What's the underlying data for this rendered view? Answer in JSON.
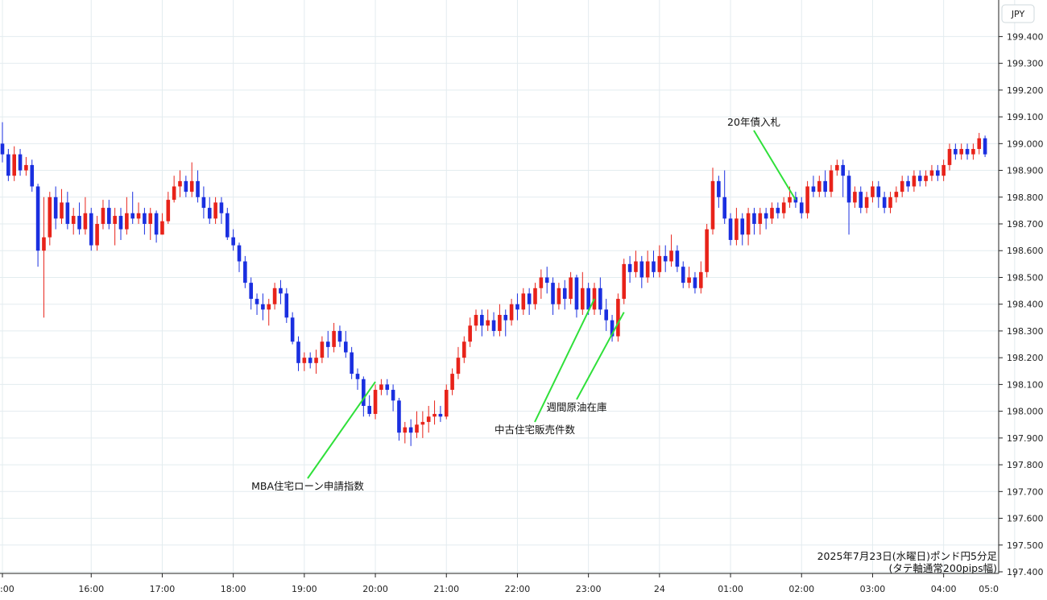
{
  "chart_data": {
    "type": "candlestick",
    "currency_label": "JPY",
    "title_line1": "2025年7月23日(水曜日)ポンド円5分足",
    "title_line2": "(タテ軸通常200pips幅)",
    "ylim": [
      197.4,
      199.45
    ],
    "y_ticks": [
      "197.400",
      "197.500",
      "197.600",
      "197.700",
      "197.800",
      "197.900",
      "198.000",
      "198.100",
      "198.200",
      "198.300",
      "198.400",
      "198.500",
      "198.600",
      "198.700",
      "198.800",
      "198.900",
      "199.000",
      "199.100",
      "199.200",
      "199.300",
      "199.400"
    ],
    "x_ticks": [
      {
        "label": ":00",
        "i": 0
      },
      {
        "label": "16:00",
        "i": 15
      },
      {
        "label": "17:00",
        "i": 27
      },
      {
        "label": "18:00",
        "i": 39
      },
      {
        "label": "19:00",
        "i": 51
      },
      {
        "label": "20:00",
        "i": 63
      },
      {
        "label": "21:00",
        "i": 75
      },
      {
        "label": "22:00",
        "i": 87
      },
      {
        "label": "23:00",
        "i": 99
      },
      {
        "label": "24",
        "i": 111
      },
      {
        "label": "01:00",
        "i": 123
      },
      {
        "label": "02:00",
        "i": 135
      },
      {
        "label": "03:00",
        "i": 147
      },
      {
        "label": "04:00",
        "i": 159
      },
      {
        "label": "05:0",
        "i": 171
      }
    ],
    "candles": [
      [
        199.0,
        198.96,
        199.08,
        198.93
      ],
      [
        198.96,
        198.88,
        198.98,
        198.86
      ],
      [
        198.88,
        198.96,
        198.99,
        198.86
      ],
      [
        198.96,
        198.9,
        198.98,
        198.88
      ],
      [
        198.9,
        198.92,
        198.95,
        198.88
      ],
      [
        198.92,
        198.84,
        198.94,
        198.82
      ],
      [
        198.84,
        198.6,
        198.85,
        198.54
      ],
      [
        198.6,
        198.65,
        198.8,
        198.35
      ],
      [
        198.65,
        198.8,
        198.82,
        198.62
      ],
      [
        198.8,
        198.72,
        198.84,
        198.68
      ],
      [
        198.72,
        198.78,
        198.83,
        198.7
      ],
      [
        198.78,
        198.7,
        198.82,
        198.68
      ],
      [
        198.7,
        198.73,
        198.76,
        198.66
      ],
      [
        198.73,
        198.68,
        198.78,
        198.66
      ],
      [
        198.68,
        198.74,
        198.8,
        198.66
      ],
      [
        198.74,
        198.62,
        198.76,
        198.6
      ],
      [
        198.62,
        198.7,
        198.73,
        198.6
      ],
      [
        198.7,
        198.76,
        198.79,
        198.68
      ],
      [
        198.76,
        198.7,
        198.79,
        198.68
      ],
      [
        198.7,
        198.73,
        198.76,
        198.62
      ],
      [
        198.73,
        198.68,
        198.76,
        198.64
      ],
      [
        198.68,
        198.74,
        198.8,
        198.66
      ],
      [
        198.74,
        198.72,
        198.82,
        198.7
      ],
      [
        198.72,
        198.74,
        198.78,
        198.7
      ],
      [
        198.74,
        198.7,
        198.76,
        198.66
      ],
      [
        198.7,
        198.74,
        198.76,
        198.64
      ],
      [
        198.74,
        198.66,
        198.75,
        198.63
      ],
      [
        198.66,
        198.71,
        198.74,
        198.66
      ],
      [
        198.71,
        198.79,
        198.82,
        198.7
      ],
      [
        198.79,
        198.84,
        198.88,
        198.78
      ],
      [
        198.84,
        198.86,
        198.9,
        198.8
      ],
      [
        198.86,
        198.82,
        198.88,
        198.8
      ],
      [
        198.82,
        198.86,
        198.93,
        198.8
      ],
      [
        198.86,
        198.8,
        198.9,
        198.78
      ],
      [
        198.8,
        198.76,
        198.84,
        198.72
      ],
      [
        198.76,
        198.72,
        198.8,
        198.7
      ],
      [
        198.72,
        198.78,
        198.8,
        198.7
      ],
      [
        198.78,
        198.74,
        198.8,
        198.7
      ],
      [
        198.74,
        198.65,
        198.76,
        198.64
      ],
      [
        198.65,
        198.62,
        198.68,
        198.6
      ],
      [
        198.62,
        198.56,
        198.63,
        198.52
      ],
      [
        198.56,
        198.48,
        198.58,
        198.46
      ],
      [
        198.48,
        198.42,
        198.5,
        198.38
      ],
      [
        198.42,
        198.4,
        198.44,
        198.36
      ],
      [
        198.4,
        198.38,
        198.44,
        198.34
      ],
      [
        198.38,
        198.4,
        198.42,
        198.32
      ],
      [
        198.4,
        198.46,
        198.48,
        198.38
      ],
      [
        198.46,
        198.44,
        198.49,
        198.4
      ],
      [
        198.44,
        198.35,
        198.46,
        198.33
      ],
      [
        198.35,
        198.26,
        198.37,
        198.25
      ],
      [
        198.26,
        198.18,
        198.28,
        198.15
      ],
      [
        198.18,
        198.2,
        198.22,
        198.15
      ],
      [
        198.2,
        198.18,
        198.22,
        198.16
      ],
      [
        198.18,
        198.2,
        198.23,
        198.14
      ],
      [
        198.2,
        198.26,
        198.28,
        198.18
      ],
      [
        198.26,
        198.24,
        198.3,
        198.2
      ],
      [
        198.24,
        198.3,
        198.33,
        198.22
      ],
      [
        198.3,
        198.26,
        198.32,
        198.24
      ],
      [
        198.26,
        198.22,
        198.3,
        198.2
      ],
      [
        198.22,
        198.14,
        198.24,
        198.12
      ],
      [
        198.14,
        198.12,
        198.16,
        198.08
      ],
      [
        198.12,
        198.02,
        198.13,
        197.98
      ],
      [
        198.02,
        197.99,
        198.06,
        197.98
      ],
      [
        197.99,
        198.08,
        198.1,
        197.97
      ],
      [
        198.08,
        198.1,
        198.12,
        198.06
      ],
      [
        198.1,
        198.08,
        198.12,
        198.06
      ],
      [
        198.08,
        198.04,
        198.1,
        198.0
      ],
      [
        198.04,
        197.92,
        198.05,
        197.89
      ],
      [
        197.92,
        197.94,
        197.96,
        197.88
      ],
      [
        197.94,
        197.92,
        197.97,
        197.87
      ],
      [
        197.92,
        197.95,
        198.0,
        197.9
      ],
      [
        197.95,
        197.96,
        198.0,
        197.9
      ],
      [
        197.96,
        197.98,
        198.02,
        197.92
      ],
      [
        197.98,
        197.99,
        198.04,
        197.95
      ],
      [
        197.99,
        197.98,
        198.02,
        197.96
      ],
      [
        197.98,
        198.08,
        198.1,
        197.97
      ],
      [
        198.08,
        198.14,
        198.16,
        198.06
      ],
      [
        198.14,
        198.2,
        198.24,
        198.12
      ],
      [
        198.2,
        198.26,
        198.28,
        198.18
      ],
      [
        198.26,
        198.32,
        198.35,
        198.24
      ],
      [
        198.32,
        198.36,
        198.38,
        198.3
      ],
      [
        198.36,
        198.32,
        198.38,
        198.28
      ],
      [
        198.32,
        198.34,
        198.38,
        198.3
      ],
      [
        198.34,
        198.3,
        198.37,
        198.28
      ],
      [
        198.3,
        198.36,
        198.4,
        198.28
      ],
      [
        198.36,
        198.34,
        198.38,
        198.28
      ],
      [
        198.34,
        198.4,
        198.42,
        198.32
      ],
      [
        198.4,
        198.38,
        198.44,
        198.34
      ],
      [
        198.38,
        198.44,
        198.46,
        198.36
      ],
      [
        198.44,
        198.4,
        198.46,
        198.36
      ],
      [
        198.4,
        198.46,
        198.48,
        198.38
      ],
      [
        198.46,
        198.5,
        198.53,
        198.42
      ],
      [
        198.5,
        198.48,
        198.54,
        198.44
      ],
      [
        198.48,
        198.4,
        198.5,
        198.36
      ],
      [
        198.4,
        198.46,
        198.48,
        198.38
      ],
      [
        198.46,
        198.42,
        198.49,
        198.38
      ],
      [
        198.42,
        198.5,
        198.52,
        198.4
      ],
      [
        198.5,
        198.38,
        198.51,
        198.35
      ],
      [
        198.38,
        198.46,
        198.52,
        198.36
      ],
      [
        198.46,
        198.38,
        198.48,
        198.36
      ],
      [
        198.38,
        198.46,
        198.48,
        198.36
      ],
      [
        198.46,
        198.38,
        198.5,
        198.36
      ],
      [
        198.38,
        198.34,
        198.42,
        198.3
      ],
      [
        198.34,
        198.28,
        198.36,
        198.26
      ],
      [
        198.28,
        198.42,
        198.44,
        198.26
      ],
      [
        198.42,
        198.55,
        198.57,
        198.4
      ],
      [
        198.55,
        198.52,
        198.58,
        198.48
      ],
      [
        198.52,
        198.56,
        198.6,
        198.5
      ],
      [
        198.56,
        198.5,
        198.58,
        198.46
      ],
      [
        198.5,
        198.56,
        198.6,
        198.48
      ],
      [
        198.56,
        198.52,
        198.6,
        198.5
      ],
      [
        198.52,
        198.58,
        198.62,
        198.5
      ],
      [
        198.58,
        198.56,
        198.62,
        198.52
      ],
      [
        198.56,
        198.6,
        198.66,
        198.54
      ],
      [
        198.6,
        198.54,
        198.62,
        198.52
      ],
      [
        198.54,
        198.48,
        198.56,
        198.46
      ],
      [
        198.48,
        198.5,
        198.54,
        198.46
      ],
      [
        198.5,
        198.46,
        198.52,
        198.44
      ],
      [
        198.46,
        198.52,
        198.56,
        198.44
      ],
      [
        198.52,
        198.68,
        198.7,
        198.5
      ],
      [
        198.68,
        198.86,
        198.91,
        198.66
      ],
      [
        198.86,
        198.8,
        198.88,
        198.76
      ],
      [
        198.8,
        198.72,
        198.9,
        198.7
      ],
      [
        198.72,
        198.64,
        198.74,
        198.62
      ],
      [
        198.64,
        198.72,
        198.76,
        198.62
      ],
      [
        198.72,
        198.66,
        198.74,
        198.62
      ],
      [
        198.66,
        198.74,
        198.76,
        198.62
      ],
      [
        198.74,
        198.7,
        198.76,
        198.66
      ],
      [
        198.7,
        198.74,
        198.76,
        198.66
      ],
      [
        198.74,
        198.72,
        198.76,
        198.68
      ],
      [
        198.72,
        198.76,
        198.78,
        198.7
      ],
      [
        198.76,
        198.74,
        198.78,
        198.72
      ],
      [
        198.74,
        198.78,
        198.8,
        198.72
      ],
      [
        198.78,
        198.8,
        198.84,
        198.76
      ],
      [
        198.8,
        198.78,
        198.82,
        198.76
      ],
      [
        198.78,
        198.74,
        198.8,
        198.72
      ],
      [
        198.74,
        198.84,
        198.86,
        198.72
      ],
      [
        198.84,
        198.82,
        198.88,
        198.8
      ],
      [
        198.82,
        198.86,
        198.88,
        198.8
      ],
      [
        198.86,
        198.82,
        198.9,
        198.8
      ],
      [
        198.82,
        198.9,
        198.92,
        198.8
      ],
      [
        198.9,
        198.92,
        198.94,
        198.88
      ],
      [
        198.92,
        198.88,
        198.94,
        198.8
      ],
      [
        198.88,
        198.78,
        198.9,
        198.66
      ],
      [
        198.78,
        198.82,
        198.84,
        198.76
      ],
      [
        198.82,
        198.76,
        198.84,
        198.74
      ],
      [
        198.76,
        198.8,
        198.82,
        198.74
      ],
      [
        198.8,
        198.84,
        198.86,
        198.78
      ],
      [
        198.84,
        198.8,
        198.86,
        198.76
      ],
      [
        198.8,
        198.76,
        198.82,
        198.74
      ],
      [
        198.76,
        198.8,
        198.82,
        198.74
      ],
      [
        198.8,
        198.82,
        198.84,
        198.78
      ],
      [
        198.82,
        198.86,
        198.88,
        198.8
      ],
      [
        198.86,
        198.84,
        198.88,
        198.82
      ],
      [
        198.84,
        198.88,
        198.9,
        198.82
      ],
      [
        198.88,
        198.86,
        198.9,
        198.84
      ],
      [
        198.86,
        198.88,
        198.9,
        198.84
      ],
      [
        198.88,
        198.9,
        198.92,
        198.86
      ],
      [
        198.9,
        198.88,
        198.92,
        198.86
      ],
      [
        198.88,
        198.92,
        198.94,
        198.86
      ],
      [
        198.92,
        198.98,
        199.0,
        198.9
      ],
      [
        198.98,
        198.96,
        199.0,
        198.94
      ],
      [
        198.96,
        198.98,
        199.0,
        198.94
      ],
      [
        198.98,
        198.96,
        199.0,
        198.94
      ],
      [
        198.96,
        198.98,
        199.0,
        198.94
      ],
      [
        198.98,
        199.02,
        199.04,
        198.96
      ],
      [
        199.02,
        198.96,
        199.03,
        198.95
      ]
    ],
    "annotations": [
      {
        "text": "MBA住宅ローン申請指数",
        "i": 63,
        "y": 198.11,
        "tx": 382,
        "ty": 608
      },
      {
        "text": "中古住宅販売件数",
        "i": 100,
        "y": 198.42,
        "tx": 664,
        "ty": 538
      },
      {
        "text": "週間原油在庫",
        "i": 105,
        "y": 198.37,
        "tx": 716,
        "ty": 510
      },
      {
        "text": "20年債入札",
        "i": 134,
        "y": 198.79,
        "tx": 936,
        "ty": 156
      }
    ],
    "up_color": "#e8231a",
    "down_color": "#1a2fe0",
    "grid": true
  }
}
